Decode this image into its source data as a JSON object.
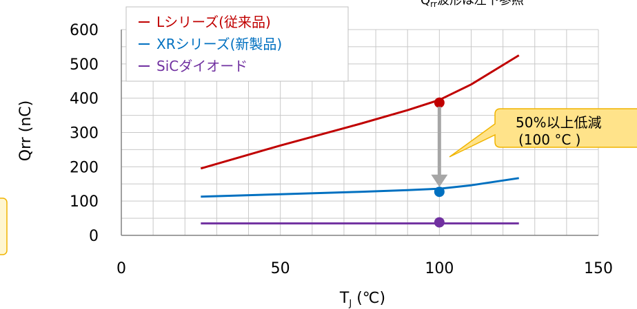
{
  "chart_data": {
    "type": "line",
    "xlabel": "TJ (℃)",
    "xlabel_main": "T",
    "xlabel_sub": "J",
    "xlabel_rest": " (℃)",
    "ylabel": "Qrr (nC)",
    "xlim": [
      0,
      150
    ],
    "ylim": [
      0,
      600
    ],
    "x_ticks": [
      "0",
      "50",
      "100",
      "150"
    ],
    "y_ticks": [
      "0",
      "100",
      "200",
      "300",
      "400",
      "500",
      "600"
    ],
    "grid": true,
    "legend_position": "top-left",
    "series": [
      {
        "name": "Lシリーズ(従来品)",
        "color": "#c00000",
        "points": [
          [
            25,
            195
          ],
          [
            50,
            262
          ],
          [
            75,
            325
          ],
          [
            90,
            365
          ],
          [
            100,
            395
          ],
          [
            110,
            440
          ],
          [
            125,
            525
          ]
        ],
        "marker": [
          100,
          387
        ]
      },
      {
        "name": "XRシリーズ(新製品)",
        "color": "#0070c0",
        "points": [
          [
            25,
            113
          ],
          [
            50,
            120
          ],
          [
            75,
            127
          ],
          [
            90,
            132
          ],
          [
            100,
            136
          ],
          [
            110,
            146
          ],
          [
            125,
            167
          ]
        ],
        "marker": [
          100,
          127
        ]
      },
      {
        "name": "SiCダイオード",
        "color": "#7030a0",
        "points": [
          [
            25,
            35
          ],
          [
            50,
            35
          ],
          [
            75,
            35
          ],
          [
            100,
            35
          ],
          [
            125,
            35
          ]
        ],
        "marker": [
          100,
          38
        ]
      }
    ],
    "annotations": {
      "callout_line1": "50%以上低減",
      "callout_line2": "(100 °C )",
      "arrow_from": [
        100,
        375
      ],
      "arrow_to": [
        100,
        145
      ],
      "top_note_main": "Q",
      "top_note_sub": "rr",
      "top_note_rest": "波形は左下参照"
    },
    "colors": {
      "grid": "#c8c8c8",
      "callout_fill": "#ffe38a",
      "callout_border": "#f0b400",
      "arrow": "#a6a6a6",
      "left_box_fill": "#fff6d0",
      "left_box_border": "#f0b400"
    }
  }
}
